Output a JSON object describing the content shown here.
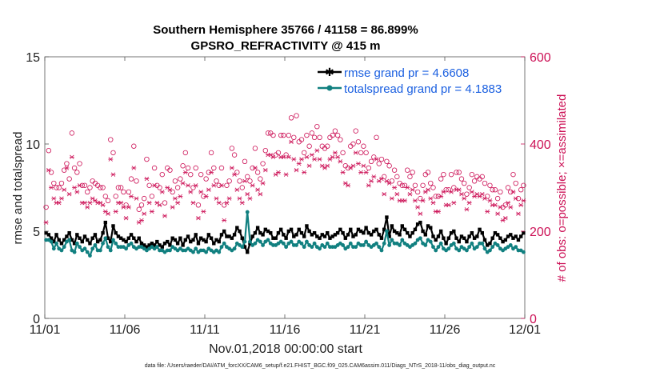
{
  "chart_data": {
    "type": "line",
    "title": "Southern Hemisphere 35766 / 41158 = 86.899%",
    "subtitle": "GPSRO_REFRACTIVITY @ 415 m",
    "xlabel": "Nov.01,2018 00:00:00 start",
    "ylabel": "rmse and totalspread",
    "ylabel_right": "# of obs: o=possible; ×=assimilated",
    "footnote": "data file: /Users/raeder/DAI/ATM_forcXX/CAM6_setup/f.e21.FHIST_BGC.f09_025.CAM6assim.011/Diags_NTrS_2018-11/obs_diag_output.nc",
    "x_tick_labels": [
      "11/01",
      "11/06",
      "11/11",
      "11/16",
      "11/21",
      "11/26",
      "12/01"
    ],
    "x_tick_days": [
      0,
      5,
      10,
      15,
      20,
      25,
      30
    ],
    "xlim": [
      0,
      30
    ],
    "ylim": [
      0,
      15
    ],
    "y_ticks": [
      0,
      5,
      10,
      15
    ],
    "ylim_right": [
      0,
      600
    ],
    "y_ticks_right": [
      0,
      200,
      400,
      600
    ],
    "colors": {
      "rmse": "#000000",
      "spread": "#118080",
      "obs": "#cc1156",
      "legend_text": "#1a5fe0"
    },
    "series": [
      {
        "name": "rmse grand pr = 4.6608",
        "color": "#000000",
        "values": [
          4.9,
          4.8,
          4.6,
          4.4,
          4.8,
          4.5,
          4.3,
          4.5,
          4.7,
          4.9,
          4.5,
          4.3,
          4.8,
          4.6,
          4.4,
          4.7,
          4.5,
          4.3,
          4.6,
          4.8,
          4.4,
          4.5,
          4.9,
          5.5,
          4.6,
          4.4,
          5.3,
          4.9,
          4.7,
          4.6,
          4.5,
          4.4,
          4.6,
          4.8,
          4.6,
          4.4,
          4.6,
          4.3,
          4.2,
          4.1,
          4.2,
          4.3,
          4.2,
          4.4,
          4.2,
          4.1,
          4.3,
          4.4,
          4.2,
          4.6,
          4.5,
          4.3,
          4.6,
          4.2,
          4.5,
          4.7,
          4.4,
          4.5,
          4.8,
          4.3,
          4.6,
          4.5,
          4.4,
          4.8,
          4.6,
          4.3,
          4.5,
          4.4,
          4.8,
          5.0,
          4.7,
          4.7,
          4.6,
          4.8,
          5.2,
          5.0,
          4.6,
          4.1,
          3.8,
          4.3,
          4.7,
          4.9,
          5.2,
          4.9,
          4.8,
          5.1,
          5.0,
          4.9,
          4.6,
          4.6,
          4.9,
          5.1,
          4.8,
          4.6,
          5.0,
          5.1,
          4.7,
          4.8,
          5.1,
          4.9,
          4.7,
          5.3,
          5.0,
          4.8,
          4.9,
          4.7,
          4.6,
          4.8,
          4.7,
          4.9,
          4.6,
          4.7,
          4.8,
          4.9,
          5.1,
          4.9,
          4.6,
          4.8,
          5.1,
          4.7,
          4.8,
          5.1,
          5.0,
          4.9,
          5.2,
          4.9,
          4.8,
          5.0,
          5.1,
          4.8,
          4.6,
          5.1,
          5.8,
          4.7,
          5.3,
          5.0,
          4.9,
          4.8,
          5.3,
          5.1,
          4.9,
          4.7,
          4.9,
          5.1,
          5.4,
          5.5,
          5.0,
          4.8,
          5.3,
          5.2,
          4.7,
          4.5,
          4.7,
          5.0,
          4.6,
          4.3,
          4.6,
          4.9,
          5.0,
          4.6,
          4.4,
          4.7,
          4.6,
          4.4,
          4.7,
          4.9,
          4.6,
          4.7,
          5.1,
          4.9,
          4.5,
          4.2,
          4.3,
          4.6,
          4.9,
          4.8,
          4.6,
          4.4,
          4.5,
          4.7,
          4.8,
          4.6,
          4.7,
          4.5,
          4.7,
          4.9
        ]
      },
      {
        "name": "totalspread grand pr = 4.1883",
        "color": "#118080",
        "values": [
          4.5,
          4.5,
          4.4,
          4.0,
          4.3,
          4.0,
          3.9,
          4.1,
          4.4,
          4.5,
          3.9,
          3.8,
          4.3,
          4.1,
          3.9,
          4.0,
          3.8,
          3.6,
          4.0,
          4.2,
          3.9,
          3.9,
          4.3,
          4.6,
          4.1,
          3.9,
          4.5,
          4.3,
          4.1,
          4.1,
          4.1,
          4.0,
          4.2,
          4.3,
          4.1,
          4.0,
          4.1,
          4.1,
          4.0,
          3.9,
          4.0,
          4.1,
          4.0,
          4.1,
          3.9,
          3.9,
          3.8,
          3.9,
          3.9,
          4.1,
          4.0,
          3.9,
          4.0,
          3.9,
          3.9,
          4.0,
          3.9,
          3.8,
          4.0,
          3.8,
          3.9,
          3.9,
          3.8,
          4.0,
          3.9,
          3.8,
          3.9,
          3.8,
          4.1,
          4.3,
          4.1,
          4.0,
          3.9,
          4.0,
          4.3,
          4.2,
          4.1,
          4.4,
          6.1,
          4.4,
          4.2,
          4.3,
          4.5,
          4.4,
          4.2,
          4.4,
          4.5,
          4.3,
          4.2,
          4.2,
          4.3,
          4.4,
          4.3,
          4.1,
          4.3,
          4.4,
          4.2,
          4.2,
          4.4,
          4.3,
          4.1,
          4.4,
          4.2,
          4.1,
          4.3,
          4.1,
          4.0,
          4.2,
          4.1,
          4.3,
          4.1,
          4.1,
          4.1,
          4.2,
          4.3,
          4.2,
          4.0,
          4.1,
          4.3,
          4.1,
          4.1,
          4.3,
          4.2,
          4.2,
          4.4,
          4.2,
          4.1,
          4.2,
          4.3,
          4.1,
          3.9,
          4.3,
          5.0,
          4.2,
          4.5,
          4.3,
          4.3,
          4.2,
          4.5,
          4.3,
          4.2,
          4.1,
          4.2,
          4.3,
          4.5,
          4.6,
          4.3,
          4.2,
          4.5,
          4.4,
          4.1,
          3.9,
          4.1,
          4.3,
          4.0,
          3.9,
          4.0,
          4.2,
          4.3,
          4.0,
          3.9,
          4.1,
          4.0,
          3.9,
          4.1,
          4.3,
          4.0,
          4.1,
          4.3,
          4.3,
          4.0,
          3.8,
          3.9,
          4.1,
          4.3,
          4.2,
          4.0,
          3.9,
          4.0,
          4.1,
          4.2,
          4.0,
          4.1,
          3.9,
          3.9,
          3.8
        ]
      },
      {
        "name": "# of obs possible",
        "axis": "right",
        "marker": "o",
        "color": "#cc1156",
        "values": [
          255,
          385,
          335,
          310,
          300,
          300,
          310,
          340,
          355,
          320,
          425,
          345,
          335,
          355,
          305,
          305,
          290,
          300,
          315,
          310,
          305,
          300,
          300,
          280,
          270,
          410,
          380,
          280,
          300,
          300,
          290,
          260,
          290,
          320,
          395,
          315,
          250,
          260,
          275,
          365,
          305,
          280,
          345,
          305,
          300,
          330,
          265,
          345,
          340,
          290,
          315,
          300,
          320,
          350,
          380,
          345,
          330,
          300,
          345,
          260,
          330,
          280,
          320,
          335,
          380,
          345,
          315,
          305,
          345,
          260,
          305,
          315,
          390,
          375,
          335,
          315,
          300,
          360,
          325,
          315,
          345,
          390,
          335,
          320,
          355,
          385,
          425,
          425,
          420,
          375,
          380,
          420,
          420,
          375,
          420,
          460,
          415,
          465,
          405,
          410,
          380,
          420,
          395,
          425,
          415,
          440,
          415,
          395,
          390,
          395,
          415,
          420,
          430,
          420,
          410,
          380,
          350,
          345,
          395,
          400,
          430,
          405,
          380,
          395,
          380,
          345,
          360,
          370,
          415,
          355,
          365,
          325,
          360,
          350,
          315,
          340,
          325,
          310,
          305,
          305,
          340,
          325,
          335,
          305,
          290,
          275,
          305,
          330,
          335,
          310,
          300,
          280,
          280,
          320,
          330,
          295,
          295,
          330,
          300,
          335,
          335,
          320,
          310,
          285,
          300,
          330,
          315,
          325,
          320,
          325,
          310,
          280,
          305,
          295,
          295,
          275,
          290,
          255,
          260,
          300,
          290,
          330,
          310,
          275,
          295,
          305
        ]
      },
      {
        "name": "# of obs assimilated",
        "axis": "right",
        "marker": "×",
        "color": "#cc1156",
        "values": [
          220,
          340,
          300,
          275,
          265,
          265,
          275,
          295,
          345,
          285,
          370,
          300,
          290,
          305,
          265,
          265,
          255,
          265,
          275,
          270,
          265,
          265,
          260,
          245,
          240,
          365,
          330,
          245,
          265,
          265,
          255,
          230,
          255,
          280,
          345,
          275,
          220,
          225,
          240,
          320,
          265,
          245,
          305,
          265,
          260,
          290,
          235,
          300,
          295,
          255,
          275,
          265,
          280,
          310,
          335,
          305,
          290,
          265,
          305,
          230,
          290,
          245,
          280,
          295,
          335,
          305,
          275,
          265,
          305,
          225,
          265,
          275,
          345,
          330,
          295,
          275,
          265,
          315,
          285,
          275,
          305,
          345,
          295,
          285,
          310,
          340,
          375,
          375,
          370,
          330,
          335,
          370,
          370,
          330,
          370,
          405,
          365,
          340,
          355,
          365,
          335,
          370,
          350,
          375,
          365,
          385,
          365,
          350,
          345,
          350,
          365,
          370,
          380,
          370,
          360,
          335,
          310,
          305,
          345,
          350,
          380,
          355,
          335,
          350,
          335,
          305,
          315,
          325,
          365,
          315,
          320,
          285,
          315,
          310,
          275,
          300,
          285,
          270,
          270,
          270,
          300,
          285,
          295,
          270,
          255,
          240,
          270,
          290,
          295,
          275,
          265,
          245,
          245,
          280,
          290,
          260,
          260,
          290,
          265,
          295,
          295,
          285,
          275,
          250,
          265,
          290,
          280,
          285,
          280,
          285,
          275,
          245,
          270,
          260,
          260,
          240,
          255,
          225,
          230,
          265,
          255,
          290,
          275,
          240,
          260,
          270
        ]
      }
    ]
  }
}
